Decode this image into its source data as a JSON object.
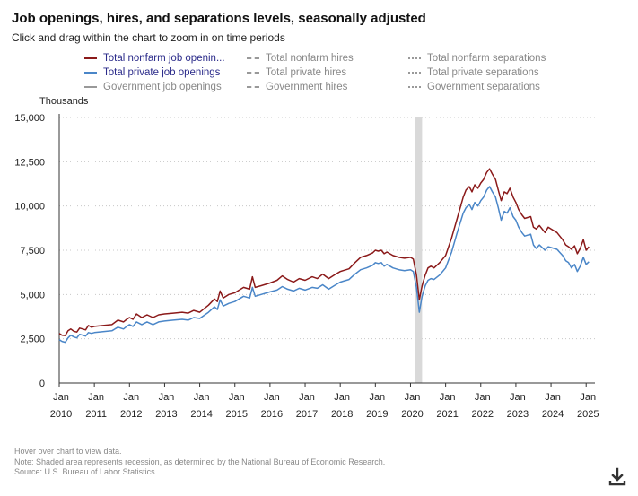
{
  "header": {
    "title": "Job openings, hires, and separations levels, seasonally adjusted",
    "subtitle": "Click and drag within the chart to zoom in on time periods"
  },
  "legend": [
    {
      "label": "Total nonfarm job openin...",
      "color": "#8b1a1a",
      "style": "solid",
      "active": true
    },
    {
      "label": "Total private job openings",
      "color": "#4a86c8",
      "style": "solid",
      "active": true
    },
    {
      "label": "Government job openings",
      "color": "#999999",
      "style": "solid",
      "active": false
    },
    {
      "label": "Total nonfarm hires",
      "color": "#999999",
      "style": "dashed",
      "active": false
    },
    {
      "label": "Total private hires",
      "color": "#999999",
      "style": "dashed",
      "active": false
    },
    {
      "label": "Government hires",
      "color": "#999999",
      "style": "dashed",
      "active": false
    },
    {
      "label": "Total nonfarm separations",
      "color": "#999999",
      "style": "dotted",
      "active": false
    },
    {
      "label": "Total private separations",
      "color": "#999999",
      "style": "dotted",
      "active": false
    },
    {
      "label": "Government separations",
      "color": "#999999",
      "style": "dotted",
      "active": false
    }
  ],
  "footer": {
    "hover": "Hover over chart to view data.",
    "note": "Note: Shaded area represents recession, as determined by the National Bureau of Economic Research.",
    "source": "Source: U.S. Bureau of Labor Statistics."
  },
  "icons": {
    "download": "download-icon"
  },
  "chart_data": {
    "type": "line",
    "title": "Job openings, hires, and separations levels, seasonally adjusted",
    "ylabel": "Thousands",
    "ylim": [
      0,
      15000
    ],
    "yticks": [
      0,
      2500,
      5000,
      7500,
      10000,
      12500,
      15000
    ],
    "ytick_labels": [
      "0",
      "2,500",
      "5,000",
      "7,500",
      "10,000",
      "12,500",
      "15,000"
    ],
    "xlim": [
      2010.0,
      2025.25
    ],
    "xtick_top": "Jan",
    "xticks": [
      2010,
      2011,
      2012,
      2013,
      2014,
      2015,
      2016,
      2017,
      2018,
      2019,
      2020,
      2021,
      2022,
      2023,
      2024,
      2025
    ],
    "xtick_labels": [
      "2010",
      "2011",
      "2012",
      "2013",
      "2014",
      "2015",
      "2016",
      "2017",
      "2018",
      "2019",
      "2020",
      "2021",
      "2022",
      "2023",
      "2024",
      "2025"
    ],
    "grid": true,
    "recession": {
      "start": 2020.12,
      "end": 2020.33,
      "color": "#d9d9d9"
    },
    "series": [
      {
        "name": "Total nonfarm job openings",
        "color": "#8b1a1a",
        "points": [
          [
            2010.0,
            2800
          ],
          [
            2010.08,
            2700
          ],
          [
            2010.17,
            2680
          ],
          [
            2010.25,
            2950
          ],
          [
            2010.33,
            3050
          ],
          [
            2010.42,
            2920
          ],
          [
            2010.5,
            2880
          ],
          [
            2010.58,
            3100
          ],
          [
            2010.67,
            3050
          ],
          [
            2010.75,
            3000
          ],
          [
            2010.83,
            3250
          ],
          [
            2010.92,
            3150
          ],
          [
            2011.0,
            3200
          ],
          [
            2011.25,
            3250
          ],
          [
            2011.5,
            3300
          ],
          [
            2011.67,
            3550
          ],
          [
            2011.83,
            3450
          ],
          [
            2011.92,
            3600
          ],
          [
            2012.0,
            3700
          ],
          [
            2012.1,
            3600
          ],
          [
            2012.2,
            3900
          ],
          [
            2012.35,
            3700
          ],
          [
            2012.5,
            3850
          ],
          [
            2012.67,
            3700
          ],
          [
            2012.83,
            3850
          ],
          [
            2013.0,
            3900
          ],
          [
            2013.25,
            3950
          ],
          [
            2013.5,
            4000
          ],
          [
            2013.67,
            3950
          ],
          [
            2013.83,
            4100
          ],
          [
            2014.0,
            4000
          ],
          [
            2014.25,
            4400
          ],
          [
            2014.42,
            4750
          ],
          [
            2014.5,
            4600
          ],
          [
            2014.58,
            5200
          ],
          [
            2014.67,
            4800
          ],
          [
            2014.83,
            5000
          ],
          [
            2015.0,
            5100
          ],
          [
            2015.25,
            5400
          ],
          [
            2015.42,
            5300
          ],
          [
            2015.5,
            6000
          ],
          [
            2015.58,
            5400
          ],
          [
            2015.75,
            5500
          ],
          [
            2016.0,
            5650
          ],
          [
            2016.2,
            5800
          ],
          [
            2016.35,
            6050
          ],
          [
            2016.5,
            5850
          ],
          [
            2016.67,
            5700
          ],
          [
            2016.83,
            5900
          ],
          [
            2017.0,
            5800
          ],
          [
            2017.2,
            6000
          ],
          [
            2017.35,
            5900
          ],
          [
            2017.5,
            6150
          ],
          [
            2017.67,
            5900
          ],
          [
            2017.83,
            6100
          ],
          [
            2018.0,
            6300
          ],
          [
            2018.25,
            6450
          ],
          [
            2018.42,
            6800
          ],
          [
            2018.58,
            7100
          ],
          [
            2018.75,
            7200
          ],
          [
            2018.92,
            7350
          ],
          [
            2019.0,
            7500
          ],
          [
            2019.08,
            7450
          ],
          [
            2019.17,
            7500
          ],
          [
            2019.25,
            7300
          ],
          [
            2019.33,
            7400
          ],
          [
            2019.5,
            7200
          ],
          [
            2019.67,
            7100
          ],
          [
            2019.83,
            7050
          ],
          [
            2020.0,
            7100
          ],
          [
            2020.08,
            7000
          ],
          [
            2020.17,
            6100
          ],
          [
            2020.25,
            4700
          ],
          [
            2020.33,
            5500
          ],
          [
            2020.42,
            6100
          ],
          [
            2020.5,
            6500
          ],
          [
            2020.58,
            6600
          ],
          [
            2020.67,
            6500
          ],
          [
            2020.83,
            6800
          ],
          [
            2021.0,
            7200
          ],
          [
            2021.17,
            8200
          ],
          [
            2021.33,
            9300
          ],
          [
            2021.5,
            10500
          ],
          [
            2021.58,
            10900
          ],
          [
            2021.67,
            11100
          ],
          [
            2021.75,
            10800
          ],
          [
            2021.83,
            11200
          ],
          [
            2021.92,
            11000
          ],
          [
            2022.0,
            11300
          ],
          [
            2022.08,
            11500
          ],
          [
            2022.17,
            11900
          ],
          [
            2022.25,
            12100
          ],
          [
            2022.33,
            11800
          ],
          [
            2022.42,
            11500
          ],
          [
            2022.5,
            10900
          ],
          [
            2022.58,
            10300
          ],
          [
            2022.67,
            10800
          ],
          [
            2022.75,
            10700
          ],
          [
            2022.83,
            11000
          ],
          [
            2022.92,
            10500
          ],
          [
            2023.0,
            10200
          ],
          [
            2023.08,
            9800
          ],
          [
            2023.17,
            9500
          ],
          [
            2023.25,
            9300
          ],
          [
            2023.42,
            9400
          ],
          [
            2023.5,
            8800
          ],
          [
            2023.58,
            8700
          ],
          [
            2023.67,
            8900
          ],
          [
            2023.83,
            8500
          ],
          [
            2023.92,
            8800
          ],
          [
            2024.0,
            8700
          ],
          [
            2024.17,
            8500
          ],
          [
            2024.33,
            8100
          ],
          [
            2024.42,
            7800
          ],
          [
            2024.5,
            7700
          ],
          [
            2024.58,
            7550
          ],
          [
            2024.67,
            7750
          ],
          [
            2024.75,
            7300
          ],
          [
            2024.83,
            7600
          ],
          [
            2024.92,
            8100
          ],
          [
            2025.0,
            7500
          ],
          [
            2025.08,
            7700
          ]
        ]
      },
      {
        "name": "Total private job openings",
        "color": "#4a86c8",
        "points": [
          [
            2010.0,
            2450
          ],
          [
            2010.08,
            2350
          ],
          [
            2010.17,
            2300
          ],
          [
            2010.25,
            2550
          ],
          [
            2010.33,
            2700
          ],
          [
            2010.42,
            2600
          ],
          [
            2010.5,
            2550
          ],
          [
            2010.58,
            2750
          ],
          [
            2010.67,
            2700
          ],
          [
            2010.75,
            2650
          ],
          [
            2010.83,
            2850
          ],
          [
            2010.92,
            2800
          ],
          [
            2011.0,
            2850
          ],
          [
            2011.25,
            2900
          ],
          [
            2011.5,
            2950
          ],
          [
            2011.67,
            3150
          ],
          [
            2011.83,
            3050
          ],
          [
            2011.92,
            3200
          ],
          [
            2012.0,
            3300
          ],
          [
            2012.1,
            3200
          ],
          [
            2012.2,
            3450
          ],
          [
            2012.35,
            3300
          ],
          [
            2012.5,
            3450
          ],
          [
            2012.67,
            3300
          ],
          [
            2012.83,
            3450
          ],
          [
            2013.0,
            3500
          ],
          [
            2013.25,
            3550
          ],
          [
            2013.5,
            3600
          ],
          [
            2013.67,
            3550
          ],
          [
            2013.83,
            3700
          ],
          [
            2014.0,
            3650
          ],
          [
            2014.25,
            4000
          ],
          [
            2014.42,
            4300
          ],
          [
            2014.5,
            4150
          ],
          [
            2014.58,
            4700
          ],
          [
            2014.67,
            4350
          ],
          [
            2014.83,
            4500
          ],
          [
            2015.0,
            4600
          ],
          [
            2015.25,
            4900
          ],
          [
            2015.42,
            4800
          ],
          [
            2015.5,
            5400
          ],
          [
            2015.58,
            4900
          ],
          [
            2015.75,
            5000
          ],
          [
            2016.0,
            5150
          ],
          [
            2016.2,
            5250
          ],
          [
            2016.35,
            5450
          ],
          [
            2016.5,
            5300
          ],
          [
            2016.67,
            5200
          ],
          [
            2016.83,
            5350
          ],
          [
            2017.0,
            5250
          ],
          [
            2017.2,
            5400
          ],
          [
            2017.35,
            5350
          ],
          [
            2017.5,
            5550
          ],
          [
            2017.67,
            5300
          ],
          [
            2017.83,
            5500
          ],
          [
            2018.0,
            5700
          ],
          [
            2018.25,
            5850
          ],
          [
            2018.42,
            6150
          ],
          [
            2018.58,
            6400
          ],
          [
            2018.75,
            6500
          ],
          [
            2018.92,
            6650
          ],
          [
            2019.0,
            6800
          ],
          [
            2019.08,
            6750
          ],
          [
            2019.17,
            6800
          ],
          [
            2019.25,
            6600
          ],
          [
            2019.33,
            6700
          ],
          [
            2019.5,
            6500
          ],
          [
            2019.67,
            6400
          ],
          [
            2019.83,
            6350
          ],
          [
            2020.0,
            6400
          ],
          [
            2020.08,
            6300
          ],
          [
            2020.17,
            5400
          ],
          [
            2020.25,
            4000
          ],
          [
            2020.33,
            4900
          ],
          [
            2020.42,
            5500
          ],
          [
            2020.5,
            5800
          ],
          [
            2020.58,
            5900
          ],
          [
            2020.67,
            5850
          ],
          [
            2020.83,
            6100
          ],
          [
            2021.0,
            6500
          ],
          [
            2021.17,
            7400
          ],
          [
            2021.33,
            8500
          ],
          [
            2021.5,
            9600
          ],
          [
            2021.58,
            9900
          ],
          [
            2021.67,
            10100
          ],
          [
            2021.75,
            9800
          ],
          [
            2021.83,
            10200
          ],
          [
            2021.92,
            10000
          ],
          [
            2022.0,
            10300
          ],
          [
            2022.08,
            10500
          ],
          [
            2022.17,
            10900
          ],
          [
            2022.25,
            11100
          ],
          [
            2022.33,
            10800
          ],
          [
            2022.42,
            10500
          ],
          [
            2022.5,
            9900
          ],
          [
            2022.58,
            9200
          ],
          [
            2022.67,
            9700
          ],
          [
            2022.75,
            9600
          ],
          [
            2022.83,
            9900
          ],
          [
            2022.92,
            9400
          ],
          [
            2023.0,
            9200
          ],
          [
            2023.08,
            8800
          ],
          [
            2023.17,
            8500
          ],
          [
            2023.25,
            8300
          ],
          [
            2023.42,
            8400
          ],
          [
            2023.5,
            7800
          ],
          [
            2023.58,
            7600
          ],
          [
            2023.67,
            7800
          ],
          [
            2023.83,
            7500
          ],
          [
            2023.92,
            7700
          ],
          [
            2024.0,
            7650
          ],
          [
            2024.17,
            7550
          ],
          [
            2024.33,
            7200
          ],
          [
            2024.42,
            6900
          ],
          [
            2024.5,
            6800
          ],
          [
            2024.58,
            6500
          ],
          [
            2024.67,
            6700
          ],
          [
            2024.75,
            6300
          ],
          [
            2024.83,
            6600
          ],
          [
            2024.92,
            7100
          ],
          [
            2025.0,
            6700
          ],
          [
            2025.08,
            6850
          ]
        ]
      }
    ]
  }
}
